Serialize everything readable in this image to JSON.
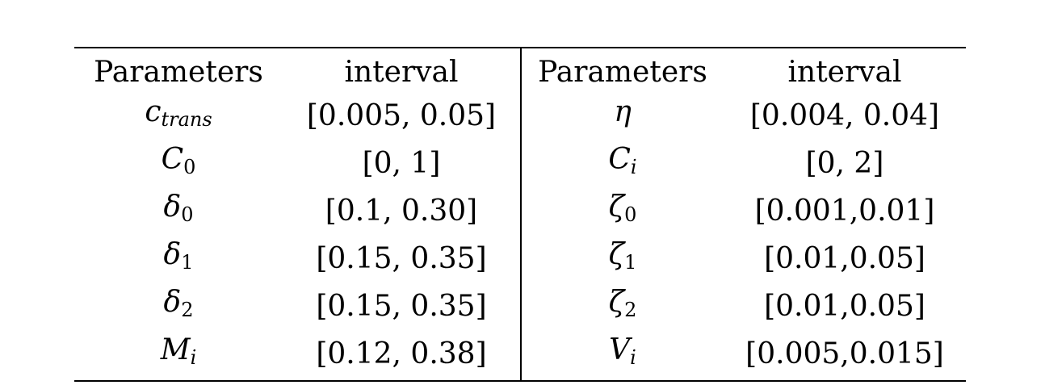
{
  "table": {
    "headers": [
      "Parameters",
      "interval",
      "Parameters",
      "interval"
    ],
    "rows": [
      {
        "p1": {
          "base": "c",
          "sub": "trans"
        },
        "i1": "[0.005, 0.05]",
        "p2": {
          "base": "η",
          "sub": ""
        },
        "i2": "[0.004, 0.04]"
      },
      {
        "p1": {
          "base": "C",
          "sub": "0"
        },
        "i1": "[0, 1]",
        "p2": {
          "base": "C",
          "sub": "i"
        },
        "i2": "[0, 2]"
      },
      {
        "p1": {
          "base": "δ",
          "sub": "0"
        },
        "i1": "[0.1, 0.30]",
        "p2": {
          "base": "ζ",
          "sub": "0"
        },
        "i2": "[0.001,0.01]"
      },
      {
        "p1": {
          "base": "δ",
          "sub": "1"
        },
        "i1": "[0.15, 0.35]",
        "p2": {
          "base": "ζ",
          "sub": "1"
        },
        "i2": "[0.01,0.05]"
      },
      {
        "p1": {
          "base": "δ",
          "sub": "2"
        },
        "i1": "[0.15, 0.35]",
        "p2": {
          "base": "ζ",
          "sub": "2"
        },
        "i2": "[0.01,0.05]"
      },
      {
        "p1": {
          "base": "M",
          "sub": "i"
        },
        "i1": "[0.12, 0.38]",
        "p2": {
          "base": "V",
          "sub": "i"
        },
        "i2": "[0.005,0.015]"
      }
    ]
  }
}
